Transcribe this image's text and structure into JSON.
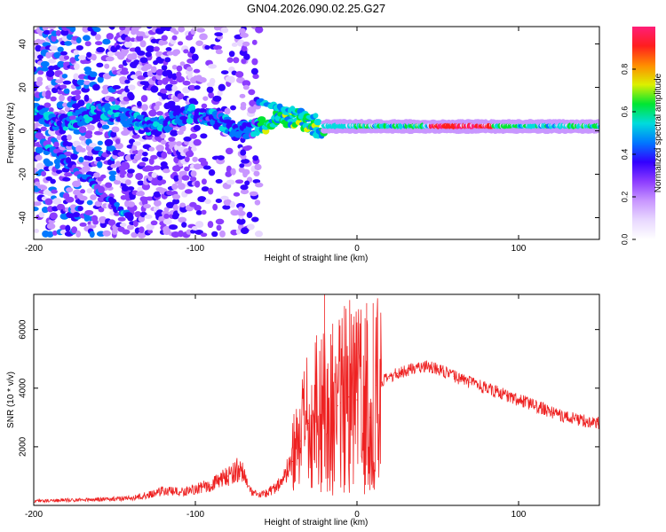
{
  "title": "GN04.2026.090.02.25.G27",
  "chart_data": [
    {
      "type": "heatmap",
      "title": "GN04.2026.090.02.25.G27",
      "xlabel": "Height of straight line (km)",
      "ylabel": "Frequency (Hz)",
      "xlim": [
        -200,
        150
      ],
      "ylim": [
        -50,
        48
      ],
      "x_ticks": [
        -200,
        -100,
        0,
        100
      ],
      "x_tick_labels": [
        "-200",
        "-100",
        "0",
        "100"
      ],
      "y_ticks": [
        -40,
        -20,
        0,
        20,
        40
      ],
      "y_tick_labels": [
        "-40",
        "-20",
        "0",
        "20",
        "40"
      ],
      "colorbar": {
        "label": "Normalized spectral amplitude",
        "range": [
          0.0,
          1.0
        ],
        "ticks": [
          0.0,
          0.2,
          0.4,
          0.6,
          0.8
        ],
        "tick_labels": [
          "0.0",
          "0.2",
          "0.4",
          "0.6",
          "0.8"
        ],
        "colors": [
          "#ffffff",
          "#e8d8ff",
          "#c896ff",
          "#8c3cff",
          "#3200ff",
          "#0078ff",
          "#00dcdc",
          "#00e632",
          "#dcf000",
          "#ff8c00",
          "#ff1e1e",
          "#ff1e78"
        ]
      },
      "features": [
        {
          "name": "direct signal ridge",
          "x_range": [
            -20,
            150
          ],
          "frequency": 2,
          "amplitude_peak": 1.0
        },
        {
          "name": "multipath branch",
          "x_range": [
            -200,
            -20
          ],
          "frequency_start": 10,
          "frequency_end": 2
        },
        {
          "name": "descending streak",
          "x_range": [
            -205,
            -140
          ],
          "frequency_start": 2,
          "frequency_end": -40
        }
      ]
    },
    {
      "type": "line",
      "xlabel": "Height of straight line (km)",
      "ylabel": "SNR (10 * v/v)",
      "xlim": [
        -200,
        150
      ],
      "ylim": [
        0,
        7200
      ],
      "x_ticks": [
        -200,
        -100,
        0,
        100
      ],
      "x_tick_labels": [
        "-200",
        "-100",
        "0",
        "100"
      ],
      "y_ticks": [
        2000,
        4000,
        6000
      ],
      "y_tick_labels": [
        "2000",
        "4000",
        "6000"
      ],
      "line_color": "#ee2222",
      "series": [
        {
          "name": "SNR",
          "x": [
            -200,
            -180,
            -160,
            -140,
            -130,
            -120,
            -110,
            -100,
            -90,
            -80,
            -72,
            -65,
            -60,
            -50,
            -45,
            -40,
            -35,
            -30,
            -25,
            -20,
            -18,
            -15,
            -12,
            -10,
            -5,
            0,
            5,
            8,
            10,
            12,
            15,
            20,
            25,
            30,
            40,
            45,
            50,
            60,
            70,
            80,
            90,
            100,
            110,
            120,
            130,
            140,
            150
          ],
          "values": [
            150,
            180,
            200,
            250,
            350,
            500,
            450,
            550,
            700,
            1000,
            1300,
            400,
            350,
            600,
            1000,
            1500,
            2200,
            2800,
            3200,
            3300,
            3000,
            3300,
            3400,
            3500,
            3700,
            3600,
            3800,
            3000,
            1500,
            4100,
            4200,
            4350,
            4500,
            4600,
            4750,
            4750,
            4650,
            4400,
            4200,
            4000,
            3800,
            3600,
            3400,
            3200,
            3000,
            2900,
            2800
          ]
        }
      ],
      "peaks": [
        {
          "x": -25,
          "value": 5800
        },
        {
          "x": -20,
          "value": 7200
        },
        {
          "x": -15,
          "value": 6200
        },
        {
          "x": 6,
          "value": 6900
        },
        {
          "x": 10,
          "value": 6900
        }
      ]
    }
  ]
}
